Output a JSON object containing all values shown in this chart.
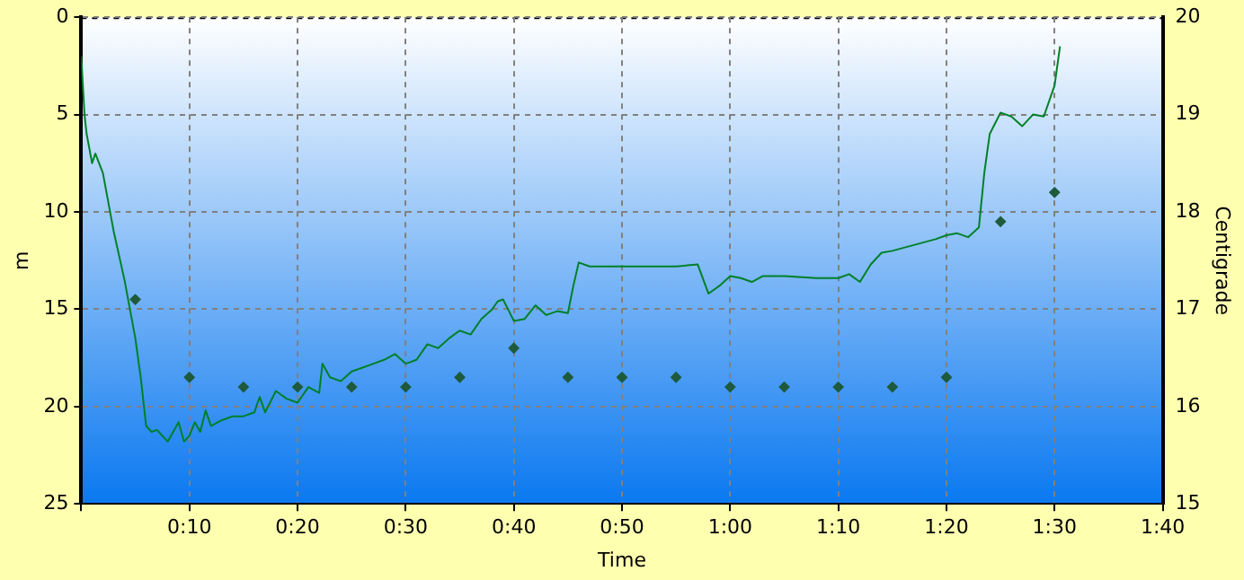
{
  "chart_data": {
    "type": "line",
    "xlabel": "Time",
    "ylabel": "m",
    "y2label": "Centigrade",
    "xlim": [
      0,
      100
    ],
    "xticks": [
      {
        "value": 0,
        "label": null
      },
      {
        "value": 10,
        "label": "0:10"
      },
      {
        "value": 20,
        "label": "0:20"
      },
      {
        "value": 30,
        "label": "0:30"
      },
      {
        "value": 40,
        "label": "0:40"
      },
      {
        "value": 50,
        "label": "0:50"
      },
      {
        "value": 60,
        "label": "1:00"
      },
      {
        "value": 70,
        "label": "1:10"
      },
      {
        "value": 80,
        "label": "1:20"
      },
      {
        "value": 90,
        "label": "1:30"
      },
      {
        "value": 100,
        "label": "1:40"
      }
    ],
    "ylim": [
      25,
      0
    ],
    "yticks": [
      0,
      5,
      10,
      15,
      20,
      25
    ],
    "y2lim": [
      15,
      20
    ],
    "y2ticks": [
      15,
      16,
      17,
      18,
      19,
      20
    ],
    "grid": true,
    "legend": false,
    "series": [
      {
        "type": "line",
        "color": "#008028",
        "x": [
          0,
          0.3,
          0.5,
          1,
          1.3,
          2,
          3,
          4,
          5,
          5.5,
          6,
          6.5,
          7,
          8,
          9,
          9.5,
          10,
          10.5,
          11,
          11.5,
          12,
          13,
          14,
          15,
          16,
          16.5,
          17,
          18,
          19,
          20,
          21,
          22,
          22.3,
          23,
          24,
          25,
          26,
          27,
          28,
          29,
          30,
          31,
          32,
          33,
          34,
          35,
          36,
          37,
          38,
          38.5,
          39,
          40,
          41,
          42,
          43,
          44,
          45,
          45.5,
          46,
          47,
          50,
          55,
          57,
          58,
          59,
          60,
          61,
          62,
          63,
          65,
          68,
          70,
          71,
          72,
          73,
          74,
          75,
          77,
          79,
          80,
          81,
          82,
          83,
          83.5,
          84,
          85,
          86,
          87,
          88,
          89,
          90,
          90.5
        ],
        "values": [
          2,
          5,
          6,
          7.5,
          7,
          8,
          11,
          13.5,
          16.5,
          18.5,
          21,
          21.3,
          21.2,
          21.8,
          20.8,
          21.8,
          21.5,
          20.8,
          21.3,
          20.2,
          21,
          20.7,
          20.5,
          20.5,
          20.3,
          19.5,
          20.3,
          19.2,
          19.6,
          19.8,
          19,
          19.3,
          17.8,
          18.5,
          18.7,
          18.2,
          18,
          17.8,
          17.6,
          17.3,
          17.8,
          17.6,
          16.8,
          17,
          16.5,
          16.1,
          16.3,
          15.5,
          15,
          14.6,
          14.5,
          15.6,
          15.5,
          14.8,
          15.3,
          15.1,
          15.2,
          13.8,
          12.6,
          12.8,
          12.8,
          12.8,
          12.7,
          14.2,
          13.8,
          13.3,
          13.4,
          13.6,
          13.3,
          13.3,
          13.4,
          13.4,
          13.2,
          13.6,
          12.7,
          12.1,
          12,
          11.7,
          11.4,
          11.2,
          11.1,
          11.3,
          10.8,
          8,
          6,
          4.9,
          5.1,
          5.6,
          5,
          5.1,
          3.5,
          1.5
        ]
      },
      {
        "type": "scatter",
        "axis": "y2",
        "marker": "diamond",
        "color": "#1f5a3c",
        "x": [
          5,
          10,
          15,
          20,
          25,
          30,
          35,
          40,
          45,
          50,
          55,
          60,
          65,
          70,
          75,
          80,
          85,
          90
        ],
        "values": [
          17.1,
          16.3,
          16.2,
          16.2,
          16.2,
          16.2,
          16.3,
          16.6,
          16.3,
          16.3,
          16.3,
          16.2,
          16.2,
          16.2,
          16.2,
          16.3,
          17.9,
          18.2
        ]
      }
    ]
  }
}
